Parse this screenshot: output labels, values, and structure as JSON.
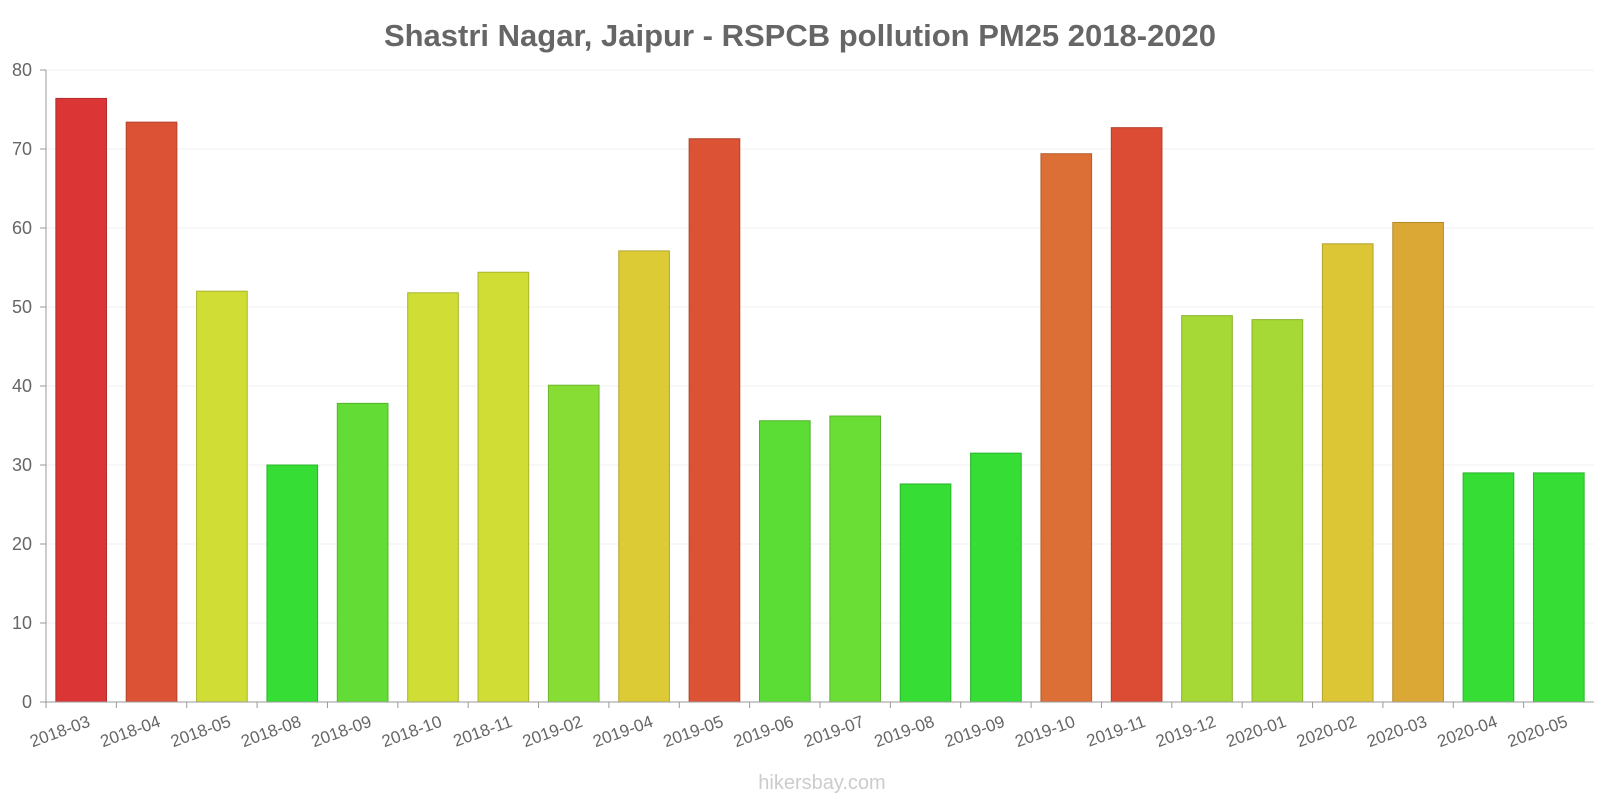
{
  "chart_data": {
    "type": "bar",
    "title": "Shastri Nagar, Jaipur - RSPCB pollution PM25 2018-2020",
    "xlabel": "",
    "ylabel": "",
    "ylim": [
      0,
      80
    ],
    "yticks": [
      0,
      10,
      20,
      30,
      40,
      50,
      60,
      70,
      80
    ],
    "grid": true,
    "categories": [
      "2018-03",
      "2018-04",
      "2018-05",
      "2018-08",
      "2018-09",
      "2018-10",
      "2018-11",
      "2019-02",
      "2019-04",
      "2019-05",
      "2019-06",
      "2019-07",
      "2019-08",
      "2019-09",
      "2019-10",
      "2019-11",
      "2019-12",
      "2020-01",
      "2020-02",
      "2020-03",
      "2020-04",
      "2020-05"
    ],
    "values": [
      76.4,
      73.4,
      52,
      30,
      37.8,
      51.8,
      54.4,
      40.1,
      57.1,
      71.3,
      35.6,
      36.2,
      27.6,
      31.5,
      69.4,
      72.7,
      48.9,
      48.4,
      58,
      60.7,
      29,
      29
    ],
    "colors": [
      "#dc3535",
      "#dc5235",
      "#cfdd35",
      "#35dd35",
      "#63dd35",
      "#cfdd35",
      "#cfdd35",
      "#88dd35",
      "#dccb35",
      "#dc5235",
      "#5bdd35",
      "#6ade35",
      "#35dd35",
      "#35dd35",
      "#dc6f35",
      "#dc4c35",
      "#a6d935",
      "#a6d935",
      "#dcc635",
      "#dca835",
      "#35dd35",
      "#35dd35"
    ]
  },
  "footer": {
    "credit": "hikersbay.com"
  }
}
